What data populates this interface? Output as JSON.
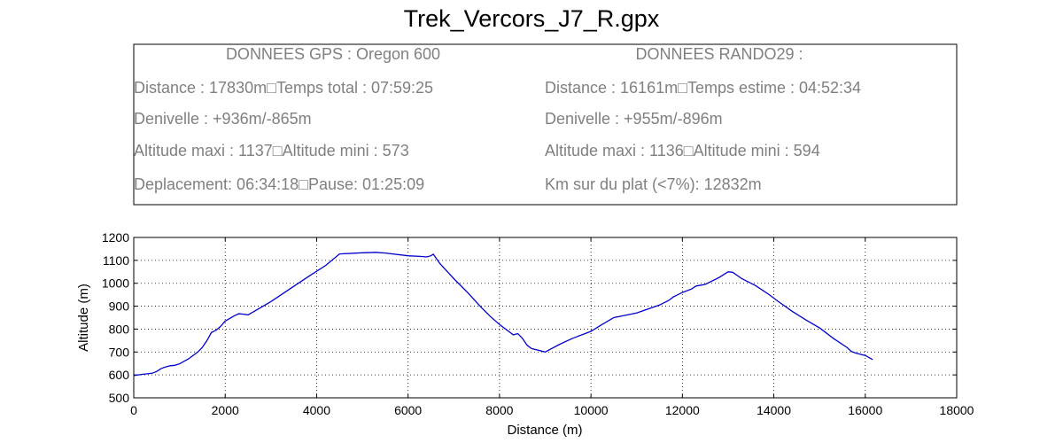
{
  "page": {
    "title": "Trek_Vercors_J7_R.gpx"
  },
  "info_box": {
    "left": {
      "header": "DONNEES GPS :  Oregon 600",
      "line1": "Distance : 17830m□Temps total : 07:59:25",
      "line2": "Denivelle : +936m/-865m",
      "line3": "Altitude maxi : 1137□Altitude mini : 573",
      "line4": "Deplacement: 06:34:18□Pause: 01:25:09"
    },
    "right": {
      "header": "DONNEES RANDO29  :",
      "line1": "Distance : 16161m□Temps estime : 04:52:34",
      "line2": "Denivelle : +955m/-896m",
      "line3": "Altitude maxi : 1136□Altitude mini : 594",
      "line4": "Km sur du plat  (<7%): 12832m"
    }
  },
  "chart_data": {
    "type": "line",
    "xlabel": "Distance (m)",
    "ylabel": "Altitude (m)",
    "xlim": [
      0,
      18000
    ],
    "ylim": [
      500,
      1200
    ],
    "xticks": [
      0,
      2000,
      4000,
      6000,
      8000,
      10000,
      12000,
      14000,
      16000,
      18000
    ],
    "yticks": [
      500,
      600,
      700,
      800,
      900,
      1000,
      1100,
      1200
    ],
    "grid": true,
    "line_color": "#0000cc",
    "series": [
      {
        "x": [
          0,
          100,
          200,
          300,
          400,
          500,
          600,
          700,
          800,
          900,
          1000,
          1200,
          1400,
          1500,
          1600,
          1700,
          1800,
          1900,
          2000,
          2200,
          2300,
          2400,
          2500,
          2700,
          3000,
          3300,
          3600,
          3900,
          4200,
          4500,
          5000,
          5300,
          5500,
          6000,
          6300,
          6400,
          6500,
          6550,
          6700,
          7000,
          7300,
          7600,
          7800,
          8000,
          8200,
          8300,
          8400,
          8500,
          8600,
          8700,
          9000,
          9300,
          9600,
          10000,
          10200,
          10500,
          11000,
          11500,
          11700,
          11800,
          12000,
          12200,
          12300,
          12500,
          12800,
          13000,
          13100,
          13300,
          13600,
          13900,
          14100,
          14400,
          14700,
          15000,
          15300,
          15600,
          15700,
          15800,
          16000,
          16161
        ],
        "y": [
          597,
          600,
          603,
          605,
          607,
          615,
          628,
          635,
          640,
          642,
          648,
          670,
          700,
          720,
          750,
          785,
          795,
          812,
          835,
          858,
          867,
          865,
          862,
          885,
          920,
          960,
          1000,
          1040,
          1078,
          1128,
          1133,
          1135,
          1132,
          1120,
          1117,
          1115,
          1120,
          1127,
          1085,
          1020,
          960,
          895,
          855,
          820,
          790,
          775,
          780,
          760,
          730,
          715,
          700,
          732,
          760,
          790,
          815,
          850,
          870,
          905,
          925,
          940,
          960,
          975,
          988,
          995,
          1025,
          1050,
          1048,
          1020,
          990,
          950,
          920,
          878,
          840,
          805,
          760,
          720,
          702,
          695,
          685,
          667
        ]
      }
    ]
  }
}
